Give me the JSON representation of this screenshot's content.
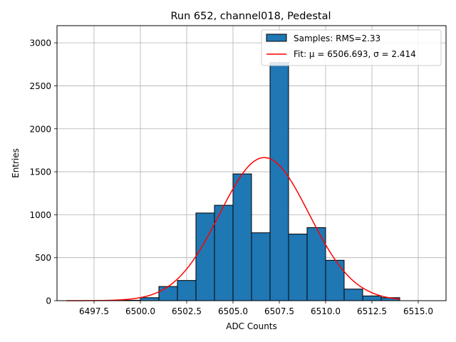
{
  "chart_data": {
    "type": "bar",
    "title": "Run 652, channel018, Pedestal",
    "xlabel": "ADC Counts",
    "ylabel": "Entries",
    "xlim": [
      6495.5,
      6516.5
    ],
    "ylim": [
      0,
      3200
    ],
    "xticks": [
      6497.5,
      6500.0,
      6502.5,
      6505.0,
      6507.5,
      6510.0,
      6512.5,
      6515.0
    ],
    "xtick_labels": [
      "6497.5",
      "6500.0",
      "6502.5",
      "6505.0",
      "6507.5",
      "6510.0",
      "6512.5",
      "6515.0"
    ],
    "yticks": [
      0,
      500,
      1000,
      1500,
      2000,
      2500,
      3000
    ],
    "ytick_labels": [
      "0",
      "500",
      "1000",
      "1500",
      "2000",
      "2500",
      "3000"
    ],
    "grid": true,
    "legend_position": "top-right",
    "histogram": {
      "name": "Samples: RMS=2.33",
      "color": "#1f77b4",
      "edge_color": "#000000",
      "bins": [
        {
          "x0": 6499.0,
          "x1": 6500.0,
          "count": 5
        },
        {
          "x0": 6500.0,
          "x1": 6501.0,
          "count": 35
        },
        {
          "x0": 6501.0,
          "x1": 6502.0,
          "count": 165
        },
        {
          "x0": 6502.0,
          "x1": 6503.0,
          "count": 235
        },
        {
          "x0": 6503.0,
          "x1": 6504.0,
          "count": 1020
        },
        {
          "x0": 6504.0,
          "x1": 6505.0,
          "count": 1110
        },
        {
          "x0": 6505.0,
          "x1": 6506.0,
          "count": 1475
        },
        {
          "x0": 6506.0,
          "x1": 6507.0,
          "count": 790
        },
        {
          "x0": 6507.0,
          "x1": 6508.0,
          "count": 2770
        },
        {
          "x0": 6508.0,
          "x1": 6509.0,
          "count": 775
        },
        {
          "x0": 6509.0,
          "x1": 6510.0,
          "count": 850
        },
        {
          "x0": 6510.0,
          "x1": 6511.0,
          "count": 470
        },
        {
          "x0": 6511.0,
          "x1": 6512.0,
          "count": 135
        },
        {
          "x0": 6512.0,
          "x1": 6513.0,
          "count": 55
        },
        {
          "x0": 6513.0,
          "x1": 6514.0,
          "count": 35
        }
      ]
    },
    "fit": {
      "name": "Fit: μ = 6506.693, σ = 2.414",
      "color": "#ff0000",
      "mu": 6506.693,
      "sigma": 2.414,
      "amplitude": 1665,
      "x_range": [
        6496.0,
        6514.0
      ]
    }
  }
}
